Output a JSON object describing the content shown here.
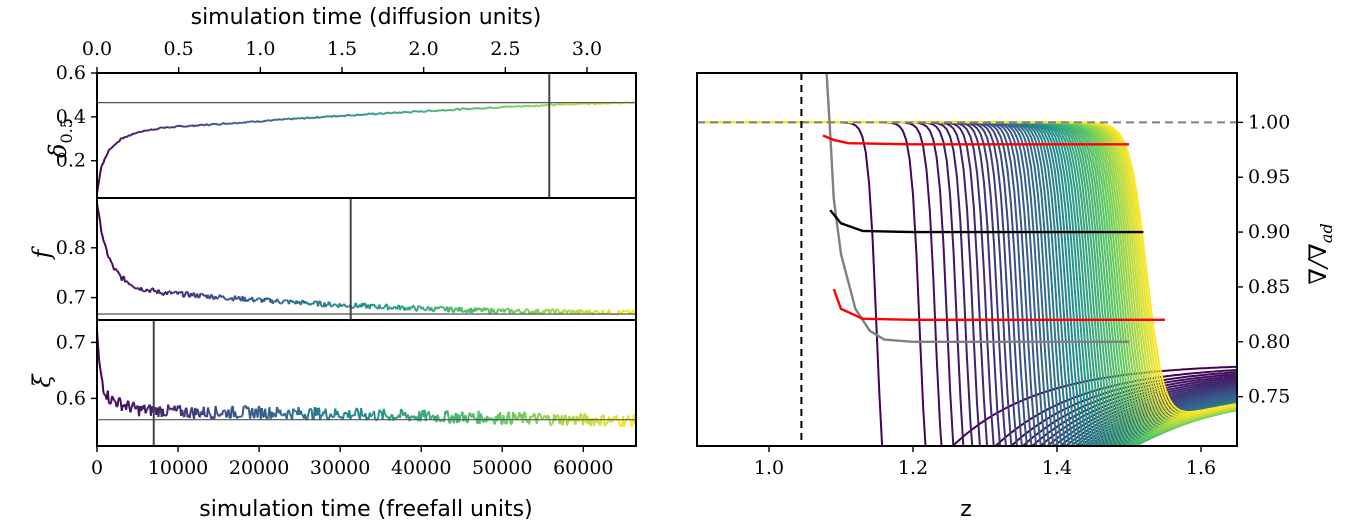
{
  "chart_data": [
    {
      "type": "line",
      "panel": "delta_0.5",
      "ylabel": "δ0.5",
      "ylabel_base": "δ",
      "ylabel_sub": "0.5",
      "xlabel_top": "simulation time (diffusion units)",
      "x_top_ticks": [
        "0.0",
        "0.5",
        "1.0",
        "1.5",
        "2.0",
        "2.5",
        "3.0"
      ],
      "x_top_values": [
        0.0,
        0.5,
        1.0,
        1.5,
        2.0,
        2.5,
        3.0
      ],
      "xlim": [
        0,
        66500
      ],
      "ylim": [
        0.03,
        0.6
      ],
      "y_ticks": [
        "0.2",
        "0.4",
        "0.6"
      ],
      "y_tick_values": [
        0.2,
        0.4,
        0.6
      ],
      "reference_hline": 0.465,
      "reference_vline": 55800,
      "x": [
        0,
        500,
        1500,
        3000,
        5000,
        8000,
        12000,
        20000,
        30000,
        40000,
        50000,
        60000,
        66500
      ],
      "values": [
        0.05,
        0.17,
        0.25,
        0.3,
        0.33,
        0.35,
        0.36,
        0.38,
        0.405,
        0.425,
        0.445,
        0.46,
        0.465
      ]
    },
    {
      "type": "line",
      "panel": "f",
      "ylabel": "f",
      "xlim": [
        0,
        66500
      ],
      "ylim": [
        0.655,
        0.9
      ],
      "y_ticks": [
        "0.7",
        "0.8"
      ],
      "y_tick_values": [
        0.7,
        0.8
      ],
      "reference_hline": 0.667,
      "reference_vline": 31300,
      "x": [
        0,
        500,
        1000,
        2000,
        3000,
        5000,
        8000,
        12000,
        20000,
        30000,
        40000,
        50000,
        60000,
        66500
      ],
      "values": [
        0.89,
        0.84,
        0.8,
        0.76,
        0.74,
        0.72,
        0.71,
        0.705,
        0.695,
        0.685,
        0.678,
        0.673,
        0.671,
        0.67
      ]
    },
    {
      "type": "line",
      "panel": "xi",
      "ylabel": "ξ",
      "xlim": [
        0,
        66500
      ],
      "ylim": [
        0.515,
        0.74
      ],
      "y_ticks": [
        "0.6",
        "0.7"
      ],
      "y_tick_values": [
        0.6,
        0.7
      ],
      "reference_hline": 0.562,
      "reference_vline": 7000,
      "xlabel": "simulation time (freefall units)",
      "x_ticks": [
        "0",
        "10000",
        "20000",
        "30000",
        "40000",
        "50000",
        "60000"
      ],
      "x_tick_values": [
        0,
        10000,
        20000,
        30000,
        40000,
        50000,
        60000
      ],
      "x": [
        0,
        300,
        800,
        1500,
        3000,
        5000,
        8000,
        12000,
        20000,
        30000,
        40000,
        50000,
        60000,
        66500
      ],
      "values": [
        0.72,
        0.66,
        0.62,
        0.6,
        0.59,
        0.58,
        0.578,
        0.575,
        0.575,
        0.572,
        0.568,
        0.565,
        0.562,
        0.56
      ]
    },
    {
      "type": "line",
      "panel": "gradient_profiles",
      "xlabel": "z",
      "ylabel": "∇/∇ad",
      "ylabel_main": "∇/∇",
      "ylabel_sub": "ad",
      "xlim": [
        0.9,
        1.65
      ],
      "ylim": [
        0.705,
        1.045
      ],
      "x_ticks": [
        "1.0",
        "1.2",
        "1.4",
        "1.6"
      ],
      "x_tick_values": [
        1.0,
        1.2,
        1.4,
        1.6
      ],
      "y_ticks": [
        "0.75",
        "0.80",
        "0.85",
        "0.90",
        "0.95",
        "1.00"
      ],
      "y_tick_values": [
        0.75,
        0.8,
        0.85,
        0.9,
        0.95,
        1.0
      ],
      "reference_hline": 1.0,
      "reference_vline": 1.045,
      "colormap": [
        "#440154",
        "#3b528b",
        "#21918c",
        "#5ec962",
        "#fde725"
      ],
      "initial_profile": {
        "color": "#808080",
        "x": [
          1.08,
          1.085,
          1.09,
          1.1,
          1.12,
          1.14,
          1.16,
          1.2,
          1.3,
          1.4,
          1.5
        ],
        "values": [
          1.045,
          0.99,
          0.93,
          0.88,
          0.83,
          0.81,
          0.802,
          0.8,
          0.8,
          0.8,
          0.8
        ]
      },
      "marker_lines": [
        {
          "color": "#ff0000",
          "x": [
            1.075,
            1.09,
            1.11,
            1.2,
            1.35,
            1.5
          ],
          "values": [
            0.988,
            0.984,
            0.981,
            0.98,
            0.98,
            0.98
          ]
        },
        {
          "color": "#000000",
          "x": [
            1.085,
            1.1,
            1.13,
            1.2,
            1.35,
            1.52
          ],
          "values": [
            0.92,
            0.908,
            0.901,
            0.9,
            0.9,
            0.9
          ]
        },
        {
          "color": "#ff0000",
          "x": [
            1.09,
            1.1,
            1.13,
            1.2,
            1.35,
            1.55
          ],
          "values": [
            0.848,
            0.83,
            0.821,
            0.82,
            0.82,
            0.82
          ]
        }
      ],
      "profile_family": {
        "count": 60,
        "front_z_start": 1.15,
        "front_z_end": 1.525,
        "plateau": 1.0
      }
    }
  ]
}
